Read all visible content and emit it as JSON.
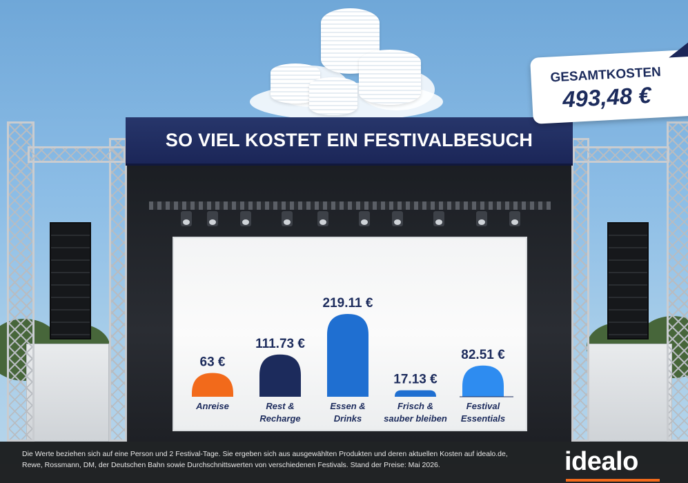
{
  "banner": {
    "title": "SO VIEL KOSTET EIN FESTIVALBESUCH"
  },
  "total": {
    "label": "GESAMTKOSTEN",
    "value": "493,48 €"
  },
  "chart_data": {
    "type": "bar",
    "title": "",
    "xlabel": "",
    "ylabel": "",
    "ylim": [
      0,
      230
    ],
    "categories": [
      [
        "Anreise"
      ],
      [
        "Rest &",
        "Recharge"
      ],
      [
        "Essen &",
        "Drinks"
      ],
      [
        "Frisch &",
        "sauber bleiben"
      ],
      [
        "Festival",
        "Essentials"
      ]
    ],
    "values": [
      63,
      111.73,
      219.11,
      17.13,
      82.51
    ],
    "value_labels": [
      "63 €",
      "111.73 €",
      "219.11 €",
      "17.13 €",
      "82.51 €"
    ],
    "colors": [
      "#f26a1b",
      "#1c2b5c",
      "#1f6fd1",
      "#1f6fd1",
      "#2e8cf0"
    ],
    "grid": false,
    "legend": "none"
  },
  "footer": {
    "note_line1": "Die Werte beziehen sich auf eine Person und 2 Festival-Tage. Sie ergeben sich aus ausgewählten Produkten und deren aktuellen Kosten auf idealo.de,",
    "note_line2": "Rewe, Rossmann, DM, der Deutschen Bahn sowie Durchschnittswerten von verschiedenen Festivals. Stand der Preise: Mai 2026.",
    "logo": "idealo"
  },
  "icons": [
    "coin-stack-icon",
    "idealo-logo"
  ]
}
